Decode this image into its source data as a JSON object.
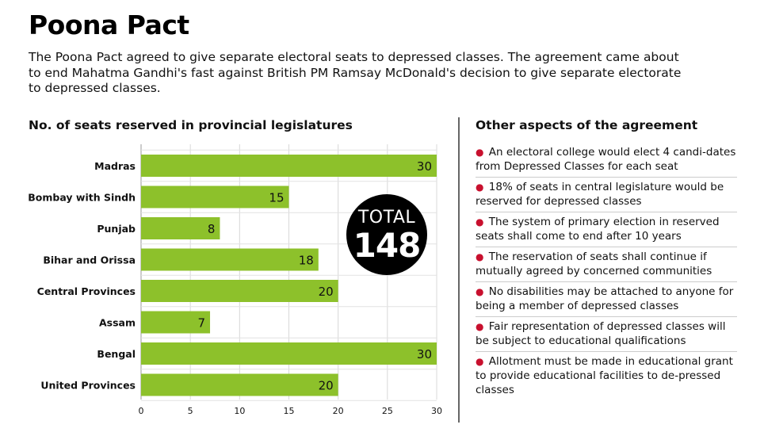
{
  "header": {
    "title": "Poona Pact",
    "intro": "The Poona Pact agreed to give separate electoral seats to depressed classes. The agreement came about to end Mahatma Gandhi's fast against British PM Ramsay McDonald's decision to give separate electorate to depressed classes."
  },
  "colors": {
    "bar": "#8dc12b",
    "bullet": "#c8102e",
    "badge": "#000000"
  },
  "chart_data": {
    "type": "bar",
    "orientation": "horizontal",
    "title": "No. of seats reserved in provincial legislatures",
    "categories": [
      "Madras",
      "Bombay with Sindh",
      "Punjab",
      "Bihar and Orissa",
      "Central Provinces",
      "Assam",
      "Bengal",
      "United Provinces"
    ],
    "values": [
      30,
      15,
      8,
      18,
      20,
      7,
      30,
      20
    ],
    "xticks": [
      0,
      5,
      10,
      15,
      20,
      25,
      30
    ],
    "xlim": [
      0,
      30
    ],
    "grid": true,
    "xlabel": "",
    "ylabel": ""
  },
  "total": {
    "label": "TOTAL",
    "value": "148"
  },
  "aspects": {
    "title": "Other aspects of the agreement",
    "items": [
      "An electoral college would elect 4 candi-dates from Depressed Classes for each seat",
      "18% of seats in central legislature would be reserved for depressed classes",
      "The system of primary election in reserved seats shall come to end after 10 years",
      "The reservation of seats shall continue if mutually agreed by concerned communities",
      "No disabilities may be attached to anyone for being a member of depressed classes",
      "Fair representation of depressed classes will be subject to educational qualifications",
      "Allotment must be made in educational grant to provide educational facilities to de-pressed classes"
    ]
  }
}
